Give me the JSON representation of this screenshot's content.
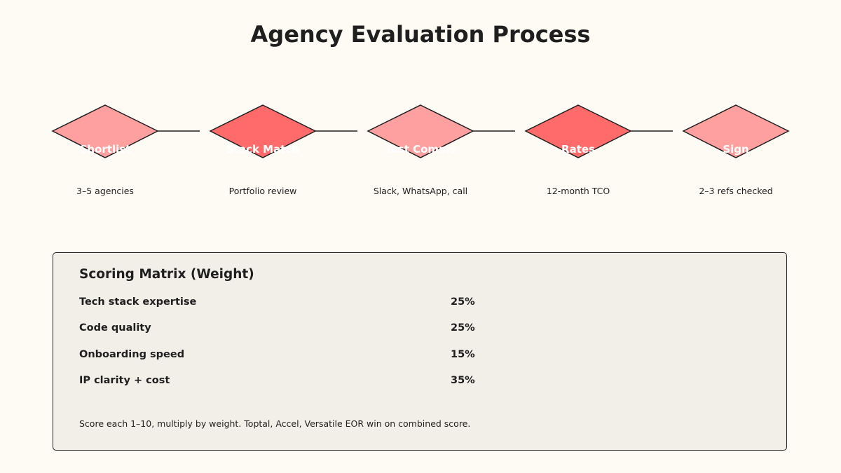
{
  "title": "Agency Evaluation Process",
  "stages": [
    {
      "label": "Shortlist",
      "note": "3–5 agencies",
      "color": "#ffa0a0"
    },
    {
      "label": "Stack Match",
      "note": "Portfolio review",
      "color": "#ff6b6b"
    },
    {
      "label": "Test Comms",
      "note": "Slack, WhatsApp, call",
      "color": "#ffa0a0"
    },
    {
      "label": "Rates",
      "note": "12-month TCO",
      "color": "#ff6b6b"
    },
    {
      "label": "Sign",
      "note": "2–3 refs checked",
      "color": "#ffa0a0"
    }
  ],
  "matrix": {
    "title": "Scoring Matrix (Weight)",
    "rows": [
      {
        "criterion": "Tech stack expertise",
        "weight": "25%"
      },
      {
        "criterion": "Code quality",
        "weight": "25%"
      },
      {
        "criterion": "Onboarding speed",
        "weight": "15%"
      },
      {
        "criterion": "IP clarity + cost",
        "weight": "35%"
      }
    ],
    "note": "Score each 1–10, multiply by weight. Toptal, Accel, Versatile EOR win on combined score."
  },
  "colors": {
    "background": "#fefbf4",
    "panel": "#f2eee8",
    "stroke": "#1f1f1f"
  }
}
